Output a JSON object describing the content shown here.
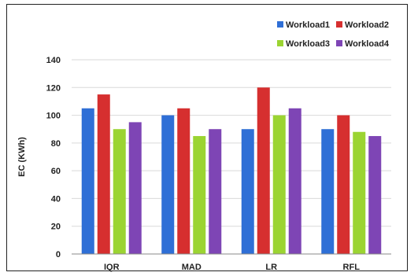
{
  "chart_data": {
    "type": "bar",
    "categories": [
      "IQR",
      "MAD",
      "LR",
      "RFL"
    ],
    "series": [
      {
        "name": "Workload1",
        "color": "#2f6fd6",
        "values": [
          105,
          100,
          90,
          90
        ]
      },
      {
        "name": "Workload2",
        "color": "#d62f2f",
        "values": [
          115,
          105,
          120,
          100
        ]
      },
      {
        "name": "Workload3",
        "color": "#9bd432",
        "values": [
          90,
          85,
          100,
          88
        ]
      },
      {
        "name": "Workload4",
        "color": "#7e45b5",
        "values": [
          95,
          90,
          105,
          85
        ]
      }
    ],
    "title": "",
    "xlabel": "",
    "ylabel": "EC (KWh)",
    "ylim": [
      0,
      140
    ],
    "yticks": [
      0,
      20,
      40,
      60,
      80,
      100,
      120,
      140
    ],
    "grid": true,
    "legend_position": "top-right"
  }
}
